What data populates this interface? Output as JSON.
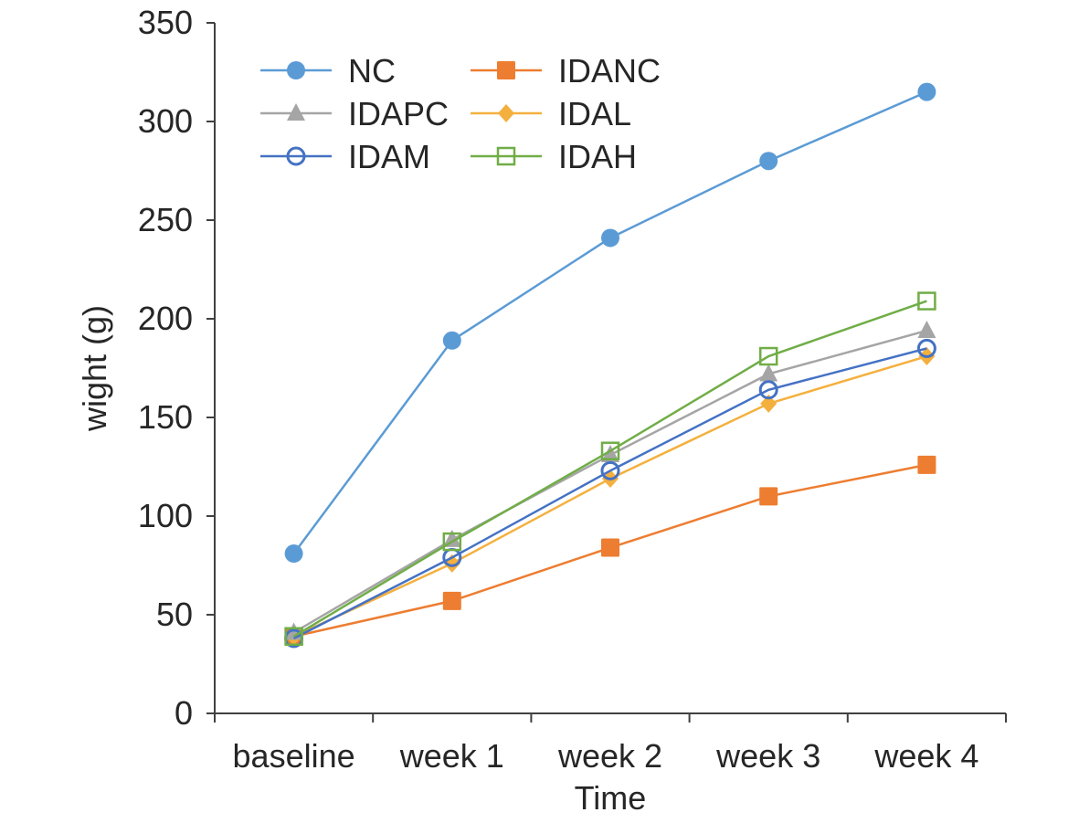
{
  "chart_data": {
    "type": "line",
    "title": "",
    "xlabel": "Time",
    "ylabel": "wight (g)",
    "categories": [
      "baseline",
      "week 1",
      "week 2",
      "week 3",
      "week 4"
    ],
    "ylim": [
      0,
      350
    ],
    "yticks": [
      0,
      50,
      100,
      150,
      200,
      250,
      300,
      350
    ],
    "grid": false,
    "legend_position": "top-left",
    "series": [
      {
        "name": "NC",
        "color": "#5B9BD5",
        "marker": "circle-filled",
        "values": [
          81,
          189,
          241,
          280,
          315
        ]
      },
      {
        "name": "IDANC",
        "color": "#ED7D31",
        "marker": "square-filled",
        "values": [
          39,
          57,
          84,
          110,
          126
        ]
      },
      {
        "name": "IDAPC",
        "color": "#A5A5A5",
        "marker": "triangle-filled",
        "values": [
          41,
          88,
          131,
          172,
          194
        ]
      },
      {
        "name": "IDAL",
        "color": "#F4B183",
        "marker": "diamond-filled",
        "values": [
          39,
          76,
          119,
          157,
          181
        ]
      },
      {
        "name": "IDAM",
        "color": "#4472C4",
        "marker": "circle-open",
        "values": [
          38,
          79,
          123,
          164,
          185
        ]
      },
      {
        "name": "IDAH",
        "color": "#70AD47",
        "marker": "square-open",
        "values": [
          39,
          87,
          133,
          181,
          209
        ]
      }
    ]
  }
}
